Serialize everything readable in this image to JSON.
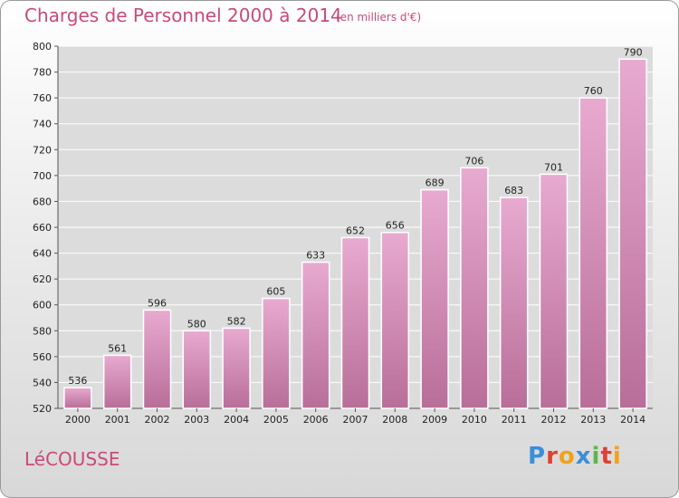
{
  "header": {
    "title": "Charges de Personnel 2000 à 2014",
    "subtitle": "(en milliers d'€)"
  },
  "footer": {
    "commune": "LéCOUSSE",
    "logo": "Proxiti",
    "logo_colors": [
      "#3a8fd8",
      "#e0402e",
      "#f0a21a",
      "#3a8fd8",
      "#5cb84a",
      "#e0402e",
      "#f0a21a"
    ]
  },
  "colors": {
    "bar_top": "#e8aad0",
    "bar_bottom": "#b86e98",
    "accent": "#c94a7a",
    "grid": "#ffffff"
  },
  "chart_data": {
    "type": "bar",
    "title": "Charges de Personnel 2000 à 2014",
    "subtitle": "(en milliers d'€)",
    "categories": [
      "2000",
      "2001",
      "2002",
      "2003",
      "2004",
      "2005",
      "2006",
      "2007",
      "2008",
      "2009",
      "2010",
      "2011",
      "2012",
      "2013",
      "2014"
    ],
    "values": [
      536,
      561,
      596,
      580,
      582,
      605,
      633,
      652,
      656,
      689,
      706,
      683,
      701,
      760,
      790
    ],
    "ylim": [
      520,
      800
    ],
    "yticks": [
      520,
      540,
      560,
      580,
      600,
      620,
      640,
      660,
      680,
      700,
      720,
      740,
      760,
      780,
      800
    ],
    "grid": true
  }
}
